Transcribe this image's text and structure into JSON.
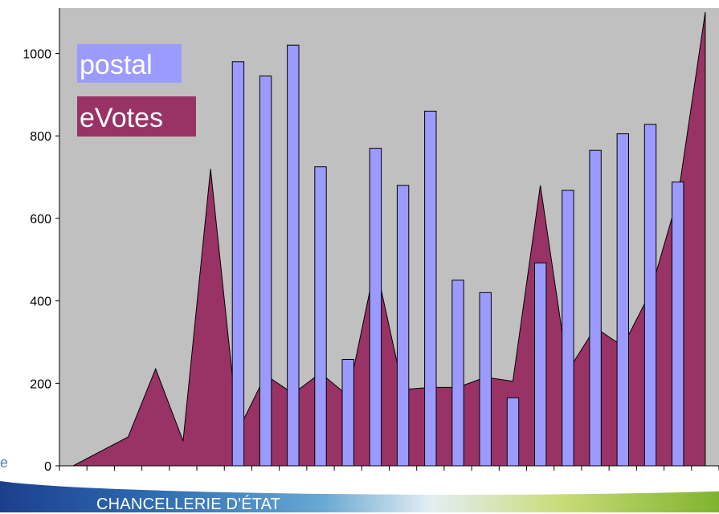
{
  "chart_data": {
    "type": "bar+area",
    "x": [
      1,
      2,
      3,
      4,
      5,
      6,
      7,
      8,
      9,
      10,
      11,
      12,
      13,
      14,
      15,
      16,
      17,
      18,
      19,
      20,
      21,
      22,
      23,
      24
    ],
    "series": [
      {
        "name": "postal",
        "type": "bar",
        "color": "#9b9bff",
        "values": [
          null,
          null,
          null,
          null,
          null,
          null,
          980,
          945,
          1020,
          725,
          258,
          770,
          680,
          860,
          450,
          420,
          165,
          492,
          668,
          765,
          805,
          828,
          688,
          null
        ]
      },
      {
        "name": "eVotes",
        "type": "area",
        "color": "#993366",
        "values": [
          0,
          35,
          70,
          235,
          60,
          720,
          85,
          220,
          175,
          225,
          170,
          490,
          185,
          190,
          190,
          215,
          205,
          680,
          230,
          335,
          290,
          420,
          650,
          1100
        ]
      }
    ],
    "ylim": [
      0,
      1110
    ],
    "yticks": [
      0,
      200,
      400,
      600,
      800,
      1000
    ],
    "plot_background": "#c0c0c0",
    "grid": false,
    "legend": {
      "placement": "top-left",
      "entries": [
        "postal",
        "eVotes"
      ]
    }
  },
  "footer": {
    "text": "CHANCELLERIE D'ÉTAT",
    "edge_mark": "e"
  }
}
